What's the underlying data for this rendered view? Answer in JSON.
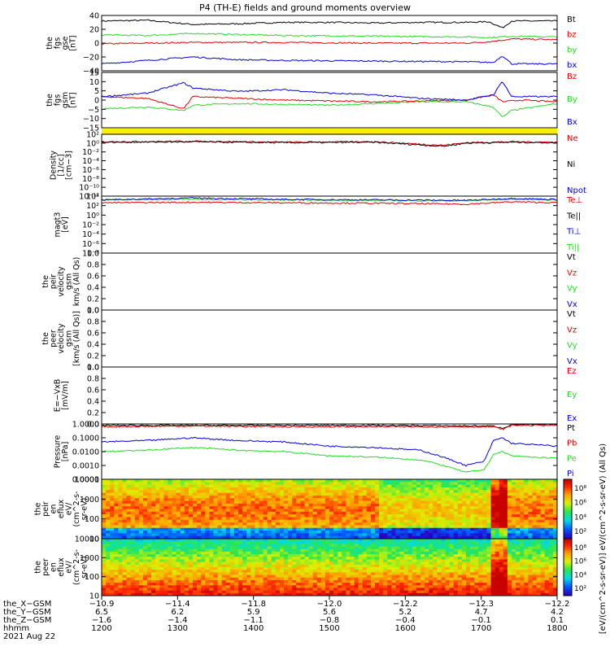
{
  "title": "P4 (TH-E) fields and ground moments overview",
  "colors": {
    "black": "#000000",
    "red": "#e00000",
    "green": "#22dd22",
    "blue": "#0000dd",
    "yellow": "#ffee00"
  },
  "chart_data": [
    {
      "id": "fgs_gse",
      "type": "line",
      "ylabel": [
        "the",
        "fgs",
        "gse",
        "[nT]"
      ],
      "ylim": [
        -40,
        40
      ],
      "yticks": [
        "40",
        "20",
        "0",
        "−20",
        "−40"
      ],
      "legend": [
        "Bt",
        "bz",
        "by",
        "bx"
      ],
      "series": [
        {
          "name": "Bt",
          "color": "#000000",
          "x": [
            0,
            0.1,
            0.2,
            0.3,
            0.4,
            0.5,
            0.6,
            0.7,
            0.8,
            0.85,
            0.88,
            0.9,
            1.0
          ],
          "y": [
            32,
            33,
            27,
            28,
            30,
            30,
            29,
            30,
            30,
            31,
            22,
            32,
            32
          ]
        },
        {
          "name": "bz",
          "color": "#e00000",
          "x": [
            0,
            0.2,
            0.4,
            0.6,
            0.8,
            0.85,
            0.9,
            1.0
          ],
          "y": [
            -1,
            1,
            1,
            0,
            0,
            2,
            6,
            5
          ]
        },
        {
          "name": "by",
          "color": "#22dd22",
          "x": [
            0,
            0.1,
            0.2,
            0.4,
            0.6,
            0.8,
            0.85,
            0.9,
            1.0
          ],
          "y": [
            12,
            11,
            14,
            11,
            10,
            9,
            8,
            10,
            9
          ]
        },
        {
          "name": "bx",
          "color": "#0000dd",
          "x": [
            0,
            0.2,
            0.25,
            0.3,
            0.4,
            0.6,
            0.8,
            0.86,
            0.88,
            0.9,
            1.0
          ],
          "y": [
            -30,
            -20,
            -22,
            -24,
            -25,
            -26,
            -27,
            -28,
            -18,
            -30,
            -30
          ]
        }
      ]
    },
    {
      "id": "fgs_gsm",
      "type": "line",
      "ylabel": [
        "the",
        "fgs",
        "gsm",
        "[nT]"
      ],
      "ylim": [
        -17,
        15
      ],
      "yticks": [
        "15",
        "10",
        "5",
        "0",
        "−5",
        "−10",
        "−15"
      ],
      "legend": [
        "Bz",
        "By",
        "Bx"
      ],
      "series": [
        {
          "name": "Bz",
          "color": "#e00000",
          "x": [
            0,
            0.1,
            0.18,
            0.2,
            0.3,
            0.4,
            0.6,
            0.8,
            0.86,
            0.88,
            0.92,
            1.0
          ],
          "y": [
            1,
            0,
            -6,
            1,
            0,
            -1,
            -2,
            -1,
            2,
            -2,
            -1,
            -2
          ]
        },
        {
          "name": "By",
          "color": "#22dd22",
          "x": [
            0,
            0.1,
            0.18,
            0.2,
            0.3,
            0.5,
            0.7,
            0.8,
            0.86,
            0.88,
            0.9,
            1.0
          ],
          "y": [
            -6,
            -5,
            -7,
            -4,
            -3,
            -4,
            -2,
            -2,
            -5,
            -11,
            -7,
            -3
          ]
        },
        {
          "name": "Bx",
          "color": "#0000dd",
          "x": [
            0,
            0.1,
            0.18,
            0.2,
            0.3,
            0.4,
            0.5,
            0.6,
            0.7,
            0.8,
            0.86,
            0.88,
            0.9,
            1.0
          ],
          "y": [
            1,
            3,
            9,
            6,
            4,
            5,
            3,
            2,
            0,
            -1,
            2,
            10,
            1,
            1
          ]
        }
      ]
    },
    {
      "id": "density",
      "type": "line",
      "scale": "log",
      "ylabel": [
        "Density",
        "[1/cc]",
        "[cm−3]"
      ],
      "ylim": [
        -12,
        2
      ],
      "yticks": [
        "10²",
        "10⁰",
        "10⁻²",
        "10⁻⁴",
        "10⁻⁶",
        "10⁻⁸",
        "10⁻¹⁰",
        "10⁻¹²"
      ],
      "legend": [
        "Ne",
        "Ni",
        "Npot"
      ],
      "series": [
        {
          "name": "Ne",
          "color": "#e00000",
          "x": [
            0,
            0.2,
            0.4,
            0.6,
            0.75,
            0.8,
            0.9,
            1.0
          ],
          "y": [
            0.3,
            0.4,
            0.2,
            0.3,
            -0.5,
            0.1,
            0.3,
            0.2
          ]
        },
        {
          "name": "Ni",
          "color": "#000000",
          "x": [
            0,
            0.2,
            0.4,
            0.6,
            0.75,
            0.8,
            0.9,
            1.0
          ],
          "y": [
            0.2,
            0.3,
            0.1,
            0.2,
            -0.7,
            0.0,
            0.2,
            0.1
          ]
        }
      ]
    },
    {
      "id": "temperature",
      "type": "line",
      "scale": "log",
      "ylabel": [
        "magt3",
        "[eV]"
      ],
      "ylim": [
        -8,
        4
      ],
      "yticks": [
        "10⁴",
        "10²",
        "10⁰",
        "10⁻²",
        "10⁻⁴",
        "10⁻⁶",
        "10⁻⁸"
      ],
      "legend": [
        "Te⊥",
        "Te||",
        "Ti⊥",
        "Ti||"
      ],
      "series": [
        {
          "name": "Ti||",
          "color": "#22dd22",
          "x": [
            0,
            0.2,
            0.4,
            0.6,
            0.8,
            0.9,
            1.0
          ],
          "y": [
            3.3,
            3.3,
            3.2,
            3.1,
            3.0,
            3.4,
            3.2
          ]
        },
        {
          "name": "Ti⊥",
          "color": "#0000dd",
          "x": [
            0,
            0.2,
            0.4,
            0.6,
            0.8,
            0.9,
            1.0
          ],
          "y": [
            3.2,
            3.6,
            3.3,
            3.2,
            3.1,
            3.5,
            3.3
          ]
        },
        {
          "name": "Te⊥",
          "color": "#e00000",
          "x": [
            0,
            0.2,
            0.4,
            0.6,
            0.8,
            0.9,
            1.0
          ],
          "y": [
            2.6,
            2.7,
            2.6,
            2.5,
            2.3,
            2.8,
            2.6
          ]
        }
      ]
    },
    {
      "id": "peir_velocity",
      "type": "line",
      "ylabel": [
        "the",
        "peir",
        "velocity",
        "gsm",
        "km/s (All Qs)"
      ],
      "ylim": [
        0,
        1
      ],
      "yticks": [
        "1.0",
        "0.8",
        "0.6",
        "0.4",
        "0.2",
        "0.0"
      ],
      "legend": [
        "Vt",
        "Vz",
        "Vy",
        "Vx"
      ],
      "series": []
    },
    {
      "id": "peer_velocity",
      "type": "line",
      "ylabel": [
        "the",
        "peer",
        "velocity",
        "gsm",
        "[km/s (All Qs)]"
      ],
      "ylim": [
        0,
        1
      ],
      "yticks": [
        "1.0",
        "0.8",
        "0.6",
        "0.4",
        "0.2",
        "0.0"
      ],
      "legend": [
        "Vt",
        "Vz",
        "Vy",
        "Vx"
      ],
      "series": []
    },
    {
      "id": "efield",
      "type": "line",
      "ylabel": [
        "E=−VxB",
        "[mV/m]"
      ],
      "ylim": [
        0,
        1
      ],
      "yticks": [
        "1.0",
        "0.8",
        "0.6",
        "0.4",
        "0.2",
        "0.0"
      ],
      "legend": [
        "Ez",
        "Ey",
        "Ex"
      ],
      "series": []
    },
    {
      "id": "pressure",
      "type": "line",
      "scale": "log",
      "ylabel": [
        "Pressure",
        "[nPa]"
      ],
      "ylim": [
        -4,
        0
      ],
      "yticks": [
        "1.0000",
        "0.1000",
        "0.0100",
        "0.0010",
        "0.0001"
      ],
      "legend": [
        "Pt",
        "Pb",
        "Pe",
        "Pi"
      ],
      "series": [
        {
          "name": "Pt",
          "color": "#000000",
          "x": [
            0,
            0.2,
            0.4,
            0.6,
            0.86,
            0.88,
            0.9,
            1.0
          ],
          "y": [
            -0.1,
            -0.1,
            -0.1,
            -0.1,
            -0.15,
            -0.3,
            -0.05,
            -0.05
          ]
        },
        {
          "name": "Pb",
          "color": "#e00000",
          "x": [
            0,
            0.2,
            0.4,
            0.6,
            0.86,
            0.88,
            0.9,
            1.0
          ],
          "y": [
            -0.2,
            -0.15,
            -0.2,
            -0.2,
            -0.2,
            -0.4,
            -0.1,
            -0.1
          ]
        },
        {
          "name": "Pi",
          "color": "#0000dd",
          "x": [
            0,
            0.1,
            0.2,
            0.3,
            0.4,
            0.5,
            0.6,
            0.7,
            0.75,
            0.8,
            0.84,
            0.86,
            0.88,
            0.9,
            1.0
          ],
          "y": [
            -1.3,
            -1.2,
            -1.0,
            -1.2,
            -1.3,
            -1.6,
            -1.7,
            -1.9,
            -2.4,
            -3.0,
            -2.7,
            -1.2,
            -1.0,
            -1.4,
            -1.6
          ]
        },
        {
          "name": "Pe",
          "color": "#22dd22",
          "x": [
            0,
            0.1,
            0.2,
            0.3,
            0.4,
            0.5,
            0.6,
            0.7,
            0.75,
            0.8,
            0.84,
            0.86,
            0.88,
            0.9,
            1.0
          ],
          "y": [
            -2.0,
            -1.9,
            -1.7,
            -1.9,
            -2.0,
            -2.3,
            -2.4,
            -2.6,
            -3.0,
            -3.5,
            -3.3,
            -2.2,
            -2.0,
            -2.3,
            -2.5
          ]
        }
      ]
    },
    {
      "id": "peir_eflux",
      "type": "heatmap",
      "scale": "log",
      "ylabel": [
        "the",
        "peir",
        "en",
        "eflux",
        "eV/",
        "(cm^2-s-",
        "sr-eV)"
      ],
      "ylim": [
        0.7,
        4.3
      ],
      "yticks": [
        "10000",
        "1000",
        "100",
        "10"
      ],
      "colorbar_ticks": [
        "10⁸",
        "10⁶",
        "10⁴",
        "10²"
      ]
    },
    {
      "id": "peer_eflux",
      "type": "heatmap",
      "scale": "log",
      "ylabel": [
        "the",
        "peer",
        "en",
        "eflux",
        "eV/",
        "(cm^2-s-",
        "sr-eV)"
      ],
      "ylim": [
        0.7,
        4.3
      ],
      "yticks": [
        "10000",
        "1000",
        "100",
        "10"
      ],
      "colorbar_ticks": [
        "10⁸",
        "10⁶",
        "10⁴",
        "10²"
      ]
    }
  ],
  "colorbar_label": "[eV/(cm^2-s-sr-eV)] eV/(cm^2-s-sr-eV) (All Qs)",
  "time_axis": {
    "row_labels": [
      "the_X−GSM",
      "the_Y−GSM",
      "the_Z−GSM",
      "hhmm",
      "2021 Aug 22"
    ],
    "columns": [
      [
        "−10.9",
        "6.5",
        "−1.6",
        "1200"
      ],
      [
        "−11.4",
        "6.2",
        "−1.4",
        "1300"
      ],
      [
        "−11.8",
        "5.9",
        "−1.1",
        "1400"
      ],
      [
        "−12.0",
        "5.6",
        "−0.8",
        "1500"
      ],
      [
        "−12.2",
        "5.2",
        "−0.4",
        "1600"
      ],
      [
        "−12.3",
        "4.7",
        "−0.1",
        "1700"
      ],
      [
        "−12.2",
        "4.2",
        "0.1",
        "1800"
      ]
    ]
  }
}
